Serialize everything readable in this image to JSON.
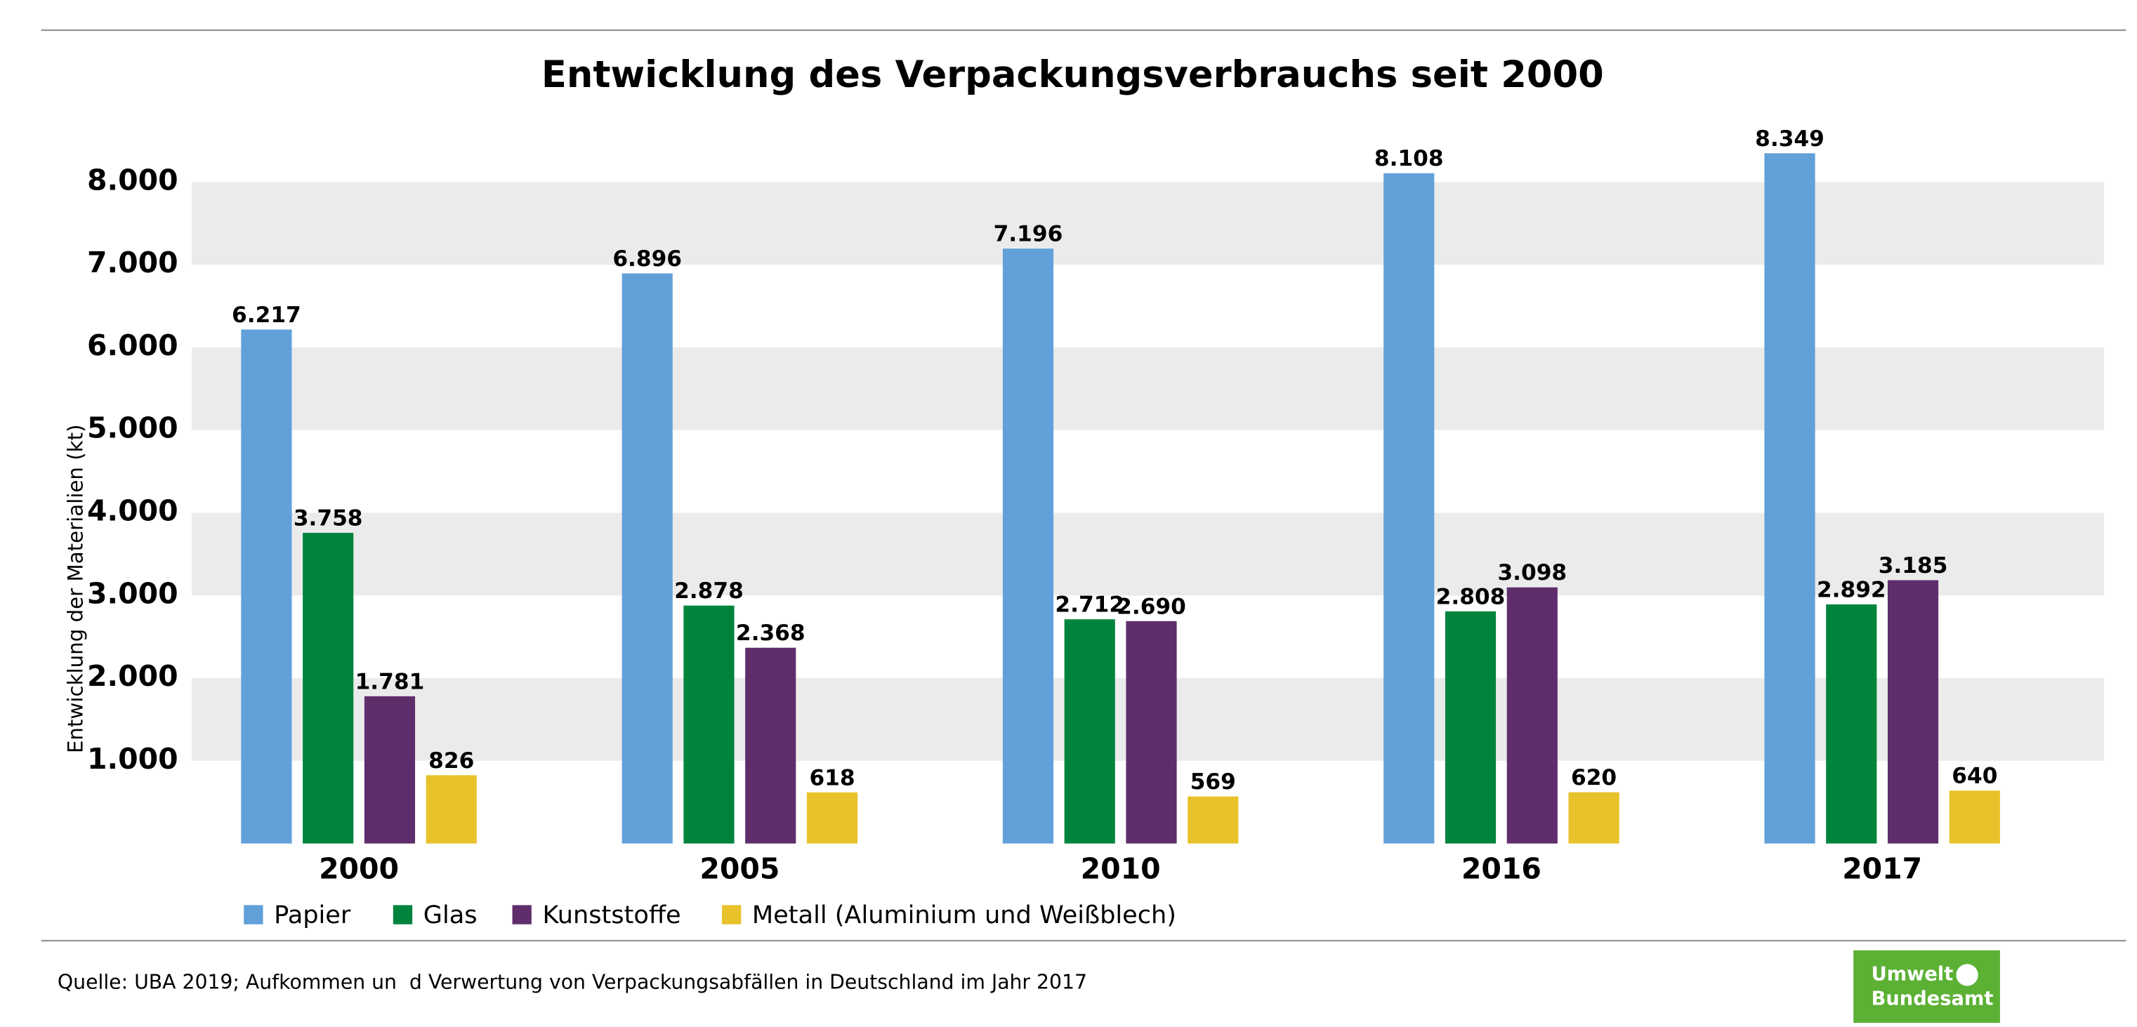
{
  "chart_data": {
    "type": "bar",
    "title": "Entwicklung des Verpackungsverbrauchs seit 2000",
    "y_label": "Entwicklung der Materialien (kt)",
    "categories": [
      "2000",
      "2005",
      "2010",
      "2016",
      "2017"
    ],
    "series": [
      {
        "name": "Papier",
        "color": "#62a0da",
        "values": [
          6217,
          6896,
          7196,
          8108,
          8349
        ],
        "value_labels": [
          "6.217",
          "6.896",
          "7.196",
          "8.108",
          "8.349"
        ]
      },
      {
        "name": "Glas",
        "color": "#00843d",
        "values": [
          3758,
          2878,
          2712,
          2808,
          2892
        ],
        "value_labels": [
          "3.758",
          "2.878",
          "2.712",
          "2.808",
          "2.892"
        ]
      },
      {
        "name": "Kunststoffe",
        "color": "#5f2d6c",
        "values": [
          1781,
          2368,
          2690,
          3098,
          3185
        ],
        "value_labels": [
          "1.781",
          "2.368",
          "2.690",
          "3.098",
          "3.185"
        ]
      },
      {
        "name": "Metall (Aluminium und Weißblech)",
        "color": "#e8c22a",
        "values": [
          826,
          618,
          569,
          620,
          640
        ]
      }
    ],
    "ylim": [
      0,
      8000
    ],
    "yticks": [
      {
        "value": 1000,
        "label": "1.000"
      },
      {
        "value": 2000,
        "label": "2.000"
      },
      {
        "value": 3000,
        "label": "3.000"
      },
      {
        "value": 4000,
        "label": "4.000"
      },
      {
        "value": 5000,
        "label": "5.000"
      },
      {
        "value": 6000,
        "label": "6.000"
      },
      {
        "value": 7000,
        "label": "7.000"
      },
      {
        "value": 8000,
        "label": "8.000"
      }
    ],
    "grid": "bands",
    "legend": "bottom",
    "source": "Quelle: UBA 2019; Aufkommen un  d Verwertung von Verpackungsabfällen in Deutschland im Jahr 2017",
    "logo": [
      "Umwelt",
      "Bundesamt"
    ]
  }
}
